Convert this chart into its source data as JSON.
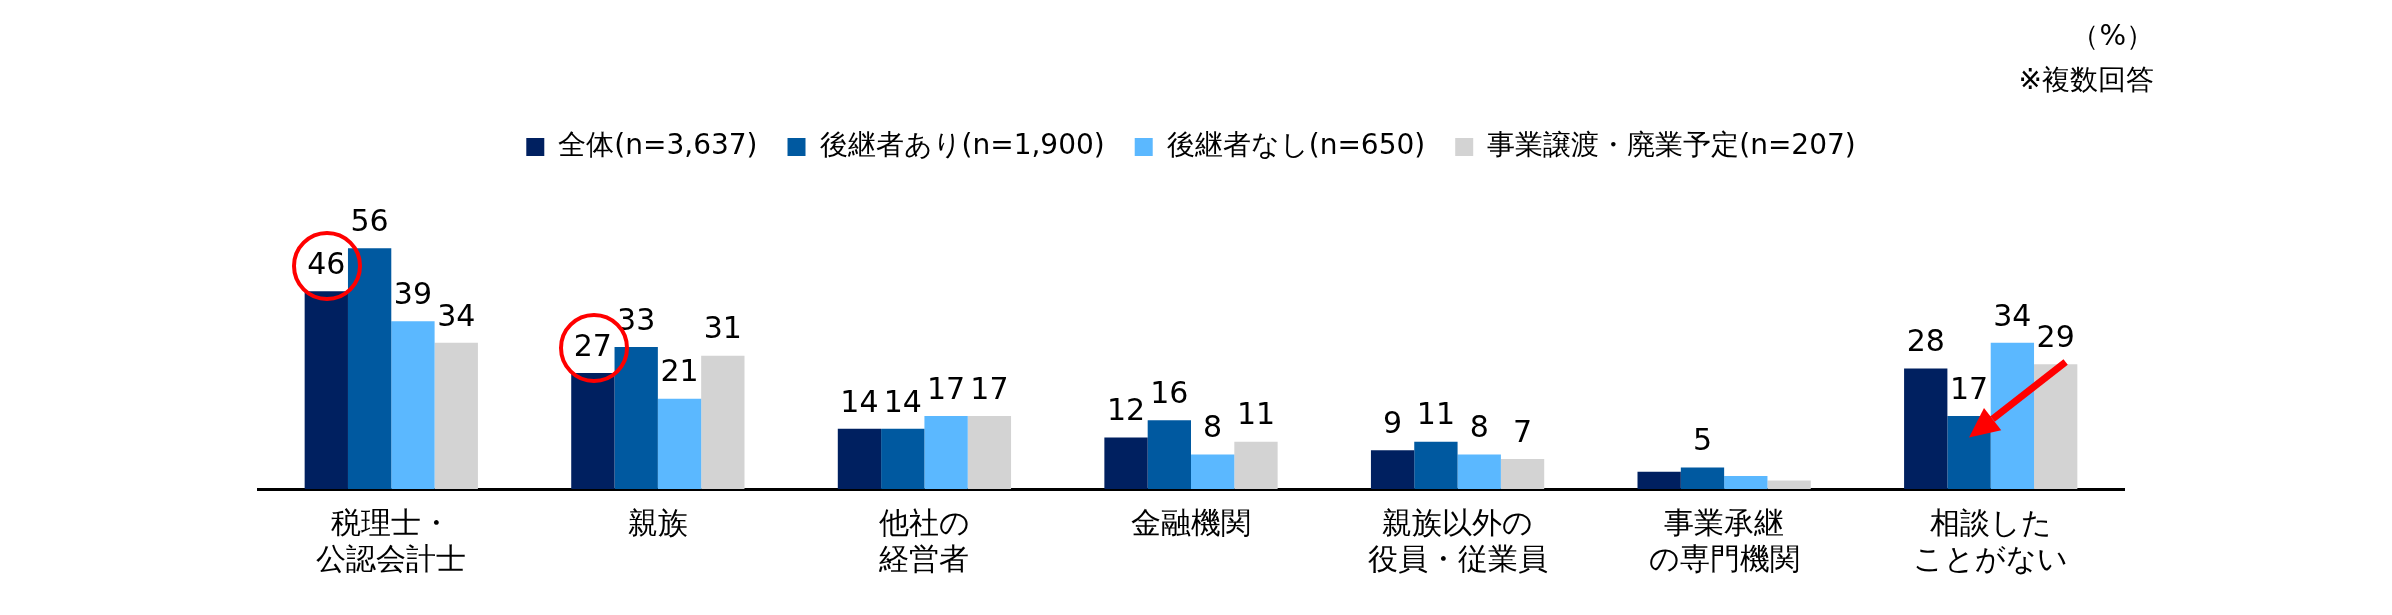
{
  "chart_data": {
    "type": "bar",
    "categories": [
      "税理士・公認会計士",
      "親族",
      "他社の経営者",
      "金融機関",
      "親族以外の役員・従業員",
      "事業承継の専門機関",
      "相談したことがない"
    ],
    "series": [
      {
        "name": "全体(n=3,637)",
        "color": "#002060",
        "values": [
          46,
          27,
          14,
          12,
          9,
          4,
          28
        ],
        "value_labels": [
          "46",
          "27",
          "14",
          "12",
          "9",
          null,
          "28"
        ]
      },
      {
        "name": "後継者あり(n=1,900)",
        "color": "#0059a0",
        "values": [
          56,
          33,
          14,
          16,
          11,
          5,
          17
        ],
        "value_labels": [
          "56",
          "33",
          "14",
          "16",
          "11",
          "5",
          "17"
        ]
      },
      {
        "name": "後継者なし(n=650)",
        "color": "#5bb8ff",
        "values": [
          39,
          21,
          17,
          8,
          8,
          3,
          34
        ],
        "value_labels": [
          "39",
          "21",
          "17",
          "8",
          "8",
          null,
          "34"
        ]
      },
      {
        "name": "事業譲渡・廃業予定(n=207)",
        "color": "#d3d3d3",
        "values": [
          34,
          31,
          17,
          11,
          7,
          2,
          29
        ],
        "value_labels": [
          "34",
          "31",
          "17",
          "11",
          "7",
          null,
          "29"
        ]
      }
    ],
    "annotations": [
      "（%）",
      "※複数回答"
    ],
    "legend": "top",
    "grid": false
  }
}
